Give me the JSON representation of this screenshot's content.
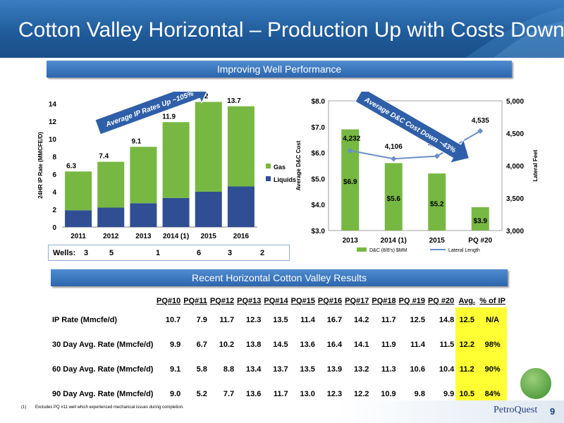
{
  "title": "Cotton Valley Horizontal – Production Up with Costs Down",
  "banner_top": "Improving Well Performance",
  "banner_bottom": "Recent Horizontal Cotton Valley Results",
  "wells": {
    "label": "Wells:",
    "values": [
      "3",
      "5",
      "1",
      "6",
      "3",
      "2"
    ]
  },
  "chart_data": [
    {
      "type": "bar",
      "ylabel": "24HR IP Rate (MMCFE/D)",
      "categories": [
        "2011",
        "2012",
        "2013",
        "2014 (1)",
        "2015",
        "2016"
      ],
      "series": [
        {
          "name": "Gas",
          "values": [
            4.4,
            5.2,
            6.4,
            8.6,
            10.2,
            9.1
          ],
          "color": "#77b843"
        },
        {
          "name": "Liquids",
          "values": [
            1.9,
            2.2,
            2.7,
            3.3,
            4.0,
            4.6
          ],
          "color": "#2f4e93"
        }
      ],
      "totals": [
        "6.3",
        "7.4",
        "9.1",
        "11.9",
        "14.2",
        "13.7"
      ],
      "ylim": [
        0,
        14
      ],
      "yticks": [
        "0",
        "2",
        "4",
        "6",
        "8",
        "10",
        "12",
        "14"
      ],
      "annotation": "Average IP Rates Up ~105%",
      "legend_position": "right"
    },
    {
      "type": "bar",
      "ylabel": "Average D&C Cost",
      "y2label": "Lateral Feet",
      "categories": [
        "2013",
        "2014 (1)",
        "2015",
        "PQ #20"
      ],
      "series": [
        {
          "name": "D&C (8/8's) $MM",
          "values": [
            6.9,
            5.6,
            5.2,
            3.9
          ],
          "labels": [
            "$6.9",
            "$5.6",
            "$5.2",
            "$3.9"
          ],
          "color": "#77b843"
        },
        {
          "name": "Lateral Length",
          "type": "line",
          "values": [
            4232,
            4106,
            4147,
            4535
          ],
          "labels": [
            "4,232",
            "4,106",
            "4,147",
            "4,535"
          ],
          "color": "#6b8fc7"
        }
      ],
      "ylim": [
        3.0,
        8.0
      ],
      "yticks": [
        "$3.0",
        "$4.0",
        "$5.0",
        "$6.0",
        "$7.0",
        "$8.0"
      ],
      "y2lim": [
        3000,
        5000
      ],
      "y2ticks": [
        "3,000",
        "3,500",
        "4,000",
        "4,500",
        "5,000"
      ],
      "annotation": "Average D&C Cost Down ~43%",
      "legend_position": "bottom"
    }
  ],
  "table": {
    "headers": [
      "PQ#10",
      "PQ#11",
      "PQ#12",
      "PQ#13",
      "PQ#14",
      "PQ#15",
      "PQ#16",
      "PQ#17",
      "PQ#18",
      "PQ #19",
      "PQ #20",
      "Avg.",
      "% of IP"
    ],
    "rows": [
      {
        "label": "IP Rate (Mmcfe/d)",
        "values": [
          "10.7",
          "7.9",
          "11.7",
          "12.3",
          "13.5",
          "11.4",
          "16.7",
          "14.2",
          "11.7",
          "12.5",
          "14.8",
          "12.5",
          "N/A"
        ]
      },
      {
        "label": "30 Day Avg. Rate (Mmcfe/d)",
        "values": [
          "9.9",
          "6.7",
          "10.2",
          "13.8",
          "14.5",
          "13.6",
          "16.4",
          "14.1",
          "11.9",
          "11.4",
          "11.5",
          "12.2",
          "98%"
        ]
      },
      {
        "label": "60 Day Avg. Rate (Mmcfe/d)",
        "values": [
          "9.1",
          "5.8",
          "8.8",
          "13.4",
          "13.7",
          "13.5",
          "13.9",
          "13.2",
          "11.3",
          "10.6",
          "10.4",
          "11.2",
          "90%"
        ]
      },
      {
        "label": "90 Day Avg. Rate (Mmcfe/d)",
        "values": [
          "9.0",
          "5.2",
          "7.7",
          "13.6",
          "11.7",
          "13.0",
          "12.3",
          "12.2",
          "10.9",
          "9.8",
          "9.9",
          "10.5",
          "84%"
        ]
      }
    ]
  },
  "footnote": {
    "num": "(1)",
    "text": "Excludes PQ #11 well which experienced mechanical issues during completion."
  },
  "logo": "PetroQuest",
  "page_number": "9"
}
